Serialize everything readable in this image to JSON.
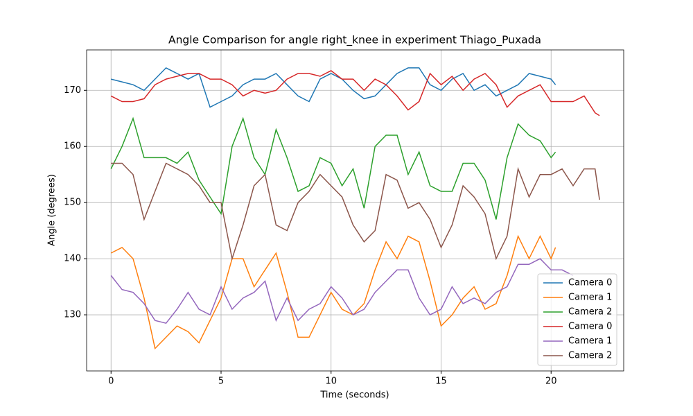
{
  "chart_data": {
    "type": "line",
    "title": "Angle Comparison for angle right_knee in experiment Thiago_Puxada",
    "xlabel": "Time (seconds)",
    "ylabel": "Angle (degrees)",
    "xlim": [
      -1.11,
      23.3
    ],
    "ylim": [
      120,
      177.2
    ],
    "xticks": [
      0,
      5,
      10,
      15,
      20
    ],
    "yticks": [
      130,
      140,
      150,
      160,
      170
    ],
    "grid": true,
    "legend": "lower right",
    "series": [
      {
        "name": "Camera 0",
        "color": "#1f77b4",
        "x": [
          0,
          0.5,
          1,
          1.5,
          2,
          2.5,
          3,
          3.5,
          4,
          4.5,
          5,
          5.5,
          6,
          6.5,
          7,
          7.5,
          8,
          8.5,
          9,
          9.5,
          10,
          10.5,
          11,
          11.5,
          12,
          12.5,
          13,
          13.5,
          14,
          14.5,
          15,
          15.5,
          16,
          16.5,
          17,
          17.5,
          18,
          18.5,
          19,
          19.5,
          20,
          20.2
        ],
        "values": [
          172,
          171.5,
          171,
          170,
          172,
          174,
          173,
          172,
          173,
          167,
          168,
          169,
          171,
          172,
          172,
          173,
          171,
          169,
          168,
          172,
          173,
          172,
          170,
          168.5,
          169,
          171,
          173,
          174,
          174,
          171,
          170,
          172,
          173,
          170,
          171,
          169,
          170,
          171,
          173,
          172.5,
          172,
          171
        ]
      },
      {
        "name": "Camera 1",
        "color": "#ff7f0e",
        "x": [
          0,
          0.5,
          1,
          1.5,
          2,
          2.5,
          3,
          3.5,
          4,
          4.5,
          5,
          5.5,
          6,
          6.5,
          7,
          7.5,
          8,
          8.5,
          9,
          9.5,
          10,
          10.5,
          11,
          11.5,
          12,
          12.5,
          13,
          13.5,
          14,
          14.5,
          15,
          15.5,
          16,
          16.5,
          17,
          17.5,
          18,
          18.5,
          19,
          19.5,
          20,
          20.2
        ],
        "values": [
          141,
          142,
          140,
          133,
          124,
          126,
          128,
          127,
          125,
          129,
          133,
          140,
          140,
          135,
          138,
          141,
          134,
          126,
          126,
          130,
          134,
          131,
          130,
          132,
          138,
          143,
          140,
          144,
          143,
          136,
          128,
          130,
          133,
          135,
          131,
          132,
          137,
          144,
          140,
          144,
          140,
          142
        ]
      },
      {
        "name": "Camera 2",
        "color": "#2ca02c",
        "x": [
          0,
          0.5,
          1,
          1.5,
          2,
          2.5,
          3,
          3.5,
          4,
          4.5,
          5,
          5.5,
          6,
          6.5,
          7,
          7.5,
          8,
          8.5,
          9,
          9.5,
          10,
          10.5,
          11,
          11.5,
          12,
          12.5,
          13,
          13.5,
          14,
          14.5,
          15,
          15.5,
          16,
          16.5,
          17,
          17.5,
          18,
          18.5,
          19,
          19.5,
          20,
          20.2
        ],
        "values": [
          156,
          160,
          165,
          158,
          158,
          158,
          157,
          159,
          154,
          151,
          148,
          160,
          165,
          158,
          155,
          163,
          158,
          152,
          153,
          158,
          157,
          153,
          156,
          149,
          160,
          162,
          162,
          155,
          159,
          153,
          152,
          152,
          157,
          157,
          154,
          147,
          158,
          164,
          162,
          161,
          158,
          159
        ]
      },
      {
        "name": "Camera 0",
        "color": "#d62728",
        "x": [
          0,
          0.5,
          1,
          1.5,
          2,
          2.5,
          3,
          3.5,
          4,
          4.5,
          5,
          5.5,
          6,
          6.5,
          7,
          7.5,
          8,
          8.5,
          9,
          9.5,
          10,
          10.5,
          11,
          11.5,
          12,
          12.5,
          13,
          13.5,
          14,
          14.5,
          15,
          15.5,
          16,
          16.5,
          17,
          17.5,
          18,
          18.5,
          19,
          19.5,
          20,
          20.5,
          21,
          21.5,
          22,
          22.2
        ],
        "values": [
          169,
          168,
          168,
          168.5,
          171,
          172,
          172.5,
          173,
          173,
          172,
          172,
          171,
          169,
          170,
          169.5,
          170,
          172,
          173,
          173,
          172.5,
          173.5,
          172,
          172,
          170,
          172,
          171,
          169,
          166.5,
          168,
          173,
          171,
          172.5,
          170,
          172,
          173,
          171,
          167,
          169,
          170,
          171,
          168,
          168,
          168,
          169,
          166,
          165.5
        ]
      },
      {
        "name": "Camera 1",
        "color": "#9467bd",
        "x": [
          0,
          0.5,
          1,
          1.5,
          2,
          2.5,
          3,
          3.5,
          4,
          4.5,
          5,
          5.5,
          6,
          6.5,
          7,
          7.5,
          8,
          8.5,
          9,
          9.5,
          10,
          10.5,
          11,
          11.5,
          12,
          12.5,
          13,
          13.5,
          14,
          14.5,
          15,
          15.5,
          16,
          16.5,
          17,
          17.5,
          18,
          18.5,
          19,
          19.5,
          20,
          20.5,
          21
        ],
        "values": [
          137,
          134.5,
          134,
          132,
          129,
          128.5,
          131,
          134,
          131,
          130,
          135,
          131,
          133,
          134,
          136,
          129,
          133,
          129,
          131,
          132,
          135,
          133,
          130,
          131,
          134,
          136,
          138,
          138,
          133,
          130,
          131,
          135,
          132,
          133,
          132,
          134,
          135,
          139,
          139,
          140,
          138,
          138,
          137
        ]
      },
      {
        "name": "Camera 2",
        "color": "#8c564b",
        "x": [
          0,
          0.5,
          1,
          1.5,
          2,
          2.5,
          3,
          3.5,
          4,
          4.5,
          5,
          5.5,
          6,
          6.5,
          7,
          7.5,
          8,
          8.5,
          9,
          9.5,
          10,
          10.5,
          11,
          11.5,
          12,
          12.5,
          13,
          13.5,
          14,
          14.5,
          15,
          15.5,
          16,
          16.5,
          17,
          17.5,
          18,
          18.5,
          19,
          19.5,
          20,
          20.5,
          21,
          21.5,
          22,
          22.2
        ],
        "values": [
          157,
          157,
          155,
          147,
          152,
          157,
          156,
          155,
          153,
          150,
          150,
          140,
          146,
          153,
          155,
          146,
          145,
          150,
          152,
          155,
          153,
          151,
          146,
          143,
          145,
          155,
          154,
          149,
          150,
          147,
          142,
          146,
          153,
          151,
          148,
          140,
          144,
          156,
          151,
          155,
          155,
          156,
          153,
          156,
          156,
          150.5
        ]
      }
    ]
  }
}
